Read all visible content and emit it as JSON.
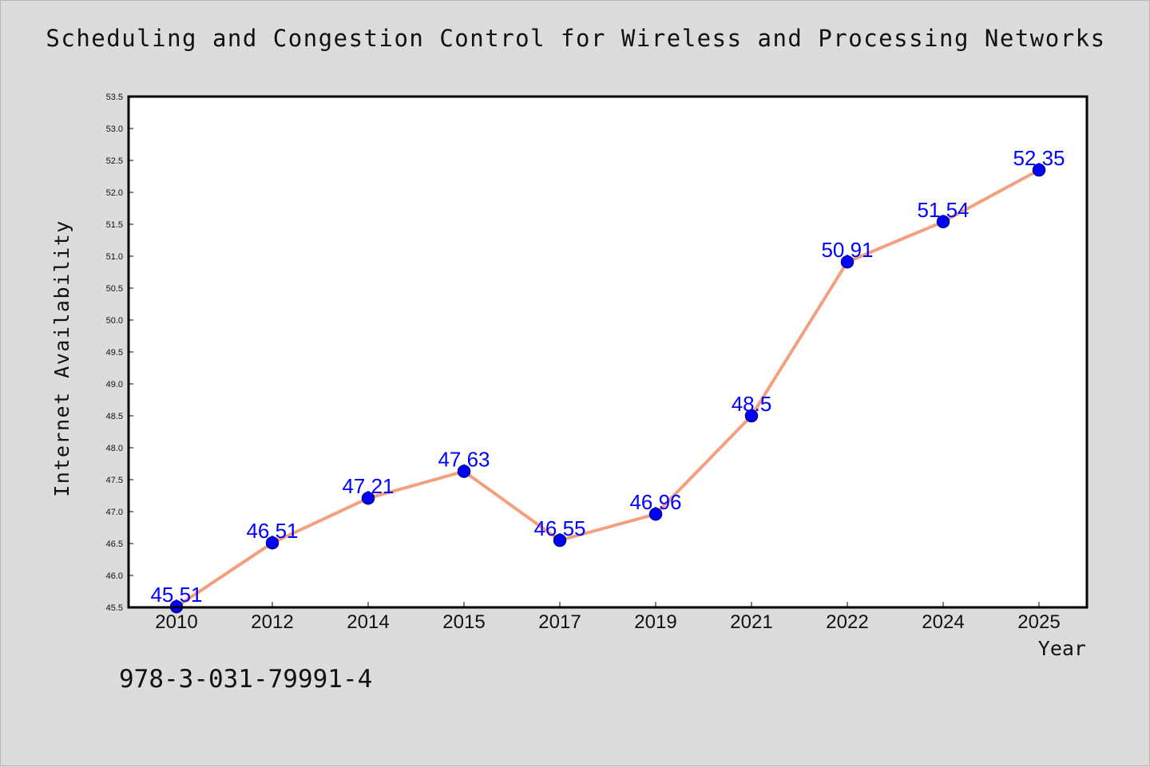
{
  "chart_data": {
    "type": "line",
    "title": "Scheduling and Congestion Control for Wireless and Processing Networks",
    "xlabel": "Year",
    "ylabel": "Internet Availability",
    "categories": [
      "2010",
      "2012",
      "2014",
      "2015",
      "2017",
      "2019",
      "2021",
      "2022",
      "2024",
      "2025"
    ],
    "series": [
      {
        "values": [
          45.51,
          46.51,
          47.21,
          47.63,
          46.55,
          46.96,
          48.5,
          50.91,
          51.54,
          52.35
        ],
        "labels": [
          "45.51",
          "46.51",
          "47.21",
          "47.63",
          "46.55",
          "46.96",
          "48.5",
          "50.91",
          "51.54",
          "52.35"
        ],
        "line_color": "#f4a07e",
        "marker_color": "#0000ff",
        "label_color": "#0000ff"
      }
    ],
    "ylim": [
      45.5,
      53.5
    ],
    "yticks": [
      "45.5",
      "46.0",
      "46.5",
      "47.0",
      "47.5",
      "48.0",
      "48.5",
      "49.0",
      "49.5",
      "50.0",
      "50.5",
      "51.0",
      "51.5",
      "52.0",
      "52.5",
      "53.0",
      "53.5"
    ],
    "grid": false,
    "legend": "none"
  },
  "footer": {
    "isbn": "978-3-031-79991-4"
  },
  "colors": {
    "background": "#dcdcdc",
    "plot_background": "#ffffff"
  }
}
